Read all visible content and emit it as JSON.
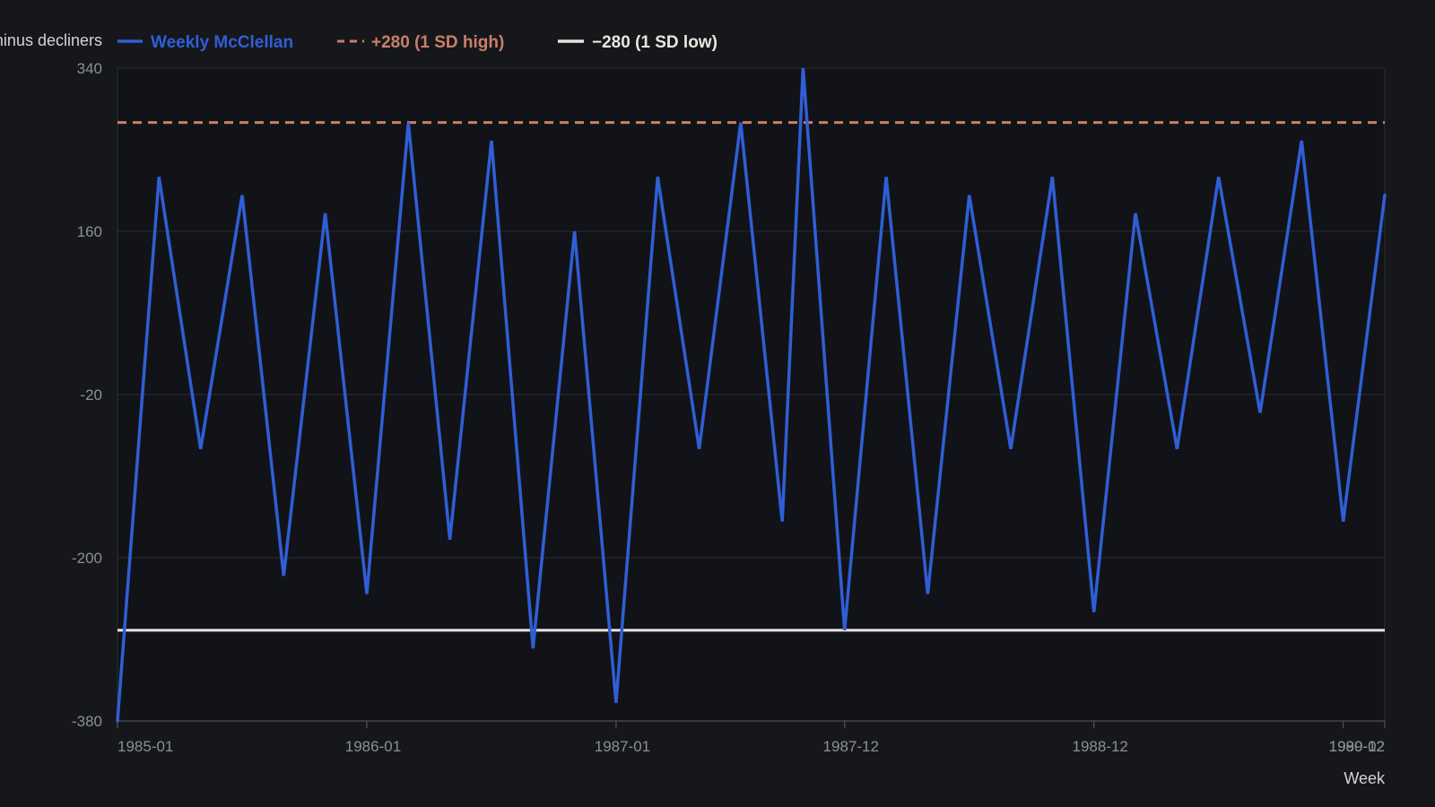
{
  "chart_data": {
    "type": "line",
    "ylabel": "Advancers minus decliners",
    "xlabel": "Week",
    "ylim": [
      -380,
      340
    ],
    "yticks": [
      "340",
      "160",
      "-20",
      "-200",
      "-380"
    ],
    "xtick_labels": [
      "1985-01",
      "1986-01",
      "1987-01",
      "1987-12",
      "1988-12",
      "1989-12",
      "1990-02"
    ],
    "grid": true,
    "legend_position": "top",
    "series": [
      {
        "name": "Weekly McClellan",
        "color": "#2f5fd6",
        "x": [
          "1985-01",
          "1985-03",
          "1985-05",
          "1985-07",
          "1985-09",
          "1985-11",
          "1986-01",
          "1986-03",
          "1986-05",
          "1986-07",
          "1986-09",
          "1986-11",
          "1987-01",
          "1987-03",
          "1987-05",
          "1987-07",
          "1987-09",
          "1987-10",
          "1987-12",
          "1988-02",
          "1988-04",
          "1988-06",
          "1988-08",
          "1988-10",
          "1988-12",
          "1989-02",
          "1989-04",
          "1989-06",
          "1989-08",
          "1989-10",
          "1989-12",
          "1990-02"
        ],
        "values": [
          -380,
          220,
          -80,
          200,
          -220,
          180,
          -240,
          280,
          -180,
          260,
          -300,
          160,
          -360,
          220,
          -80,
          280,
          -160,
          340,
          -280,
          220,
          -240,
          200,
          -80,
          220,
          -260,
          180,
          -80,
          220,
          -40,
          260,
          -160,
          200
        ]
      }
    ],
    "reference_lines": [
      {
        "name": "+280 (1 SD high)",
        "value": 280,
        "color": "#c97f6b",
        "style": "dashed"
      },
      {
        "name": "−280 (1 SD low)",
        "value": -280,
        "color": "#e8e6df",
        "style": "solid"
      }
    ]
  },
  "colors": {
    "background": "#16171b",
    "plot_background": "#121318",
    "grid": "#2a2c32"
  }
}
